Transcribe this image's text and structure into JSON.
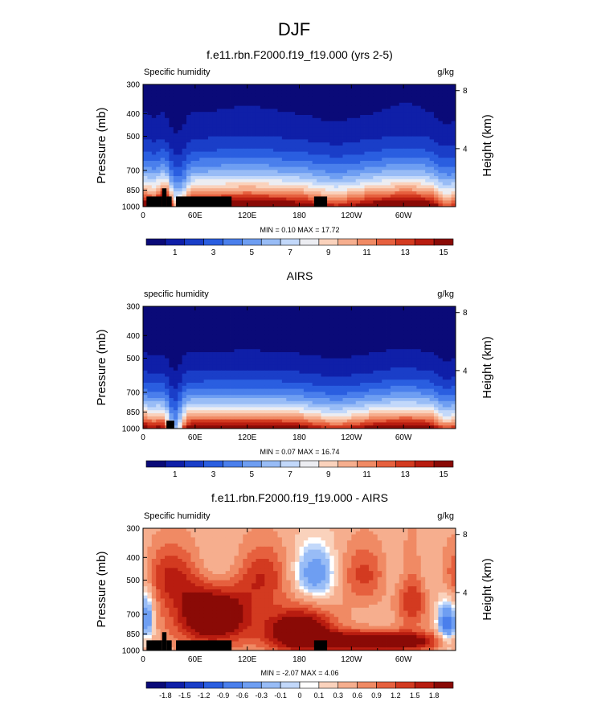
{
  "figure": {
    "title": "DJF"
  },
  "colors": {
    "humidity_scale": [
      "#0a0a78",
      "#0f1fa8",
      "#1a3ec8",
      "#2a5ee0",
      "#4a7fec",
      "#6e9ef2",
      "#98bcf6",
      "#c2d8fa",
      "#ecedf2",
      "#fad2bc",
      "#f6ae8e",
      "#f08a64",
      "#e6603e",
      "#d33a20",
      "#b81c10",
      "#8a0a06"
    ],
    "diff_scale": [
      "#0a0a78",
      "#0f1fa8",
      "#1a3ec8",
      "#2a5ee0",
      "#4a7fec",
      "#6e9ef2",
      "#98bcf6",
      "#c2d8fa",
      "#ffffff",
      "#fad2bc",
      "#f6ae8e",
      "#f08a64",
      "#e6603e",
      "#d33a20",
      "#b81c10",
      "#8a0a06"
    ],
    "land": "#000000"
  },
  "chart_data": [
    {
      "type": "heatmap",
      "title": "f.e11.rbn.F2000.f19_f19.000 (yrs 2-5)",
      "left_label": "Specific humidity",
      "units": "g/kg",
      "ylabel": "Pressure (mb)",
      "ylabel_right": "Height (km)",
      "x_ticks": [
        "0",
        "60E",
        "120E",
        "180",
        "120W",
        "60W"
      ],
      "x_tick_values": [
        0,
        60,
        120,
        180,
        240,
        300
      ],
      "xlim": [
        0,
        360
      ],
      "y_ticks": [
        "300",
        "400",
        "500",
        "700",
        "850",
        "1000"
      ],
      "y_tick_values": [
        300,
        400,
        500,
        700,
        850,
        1000
      ],
      "ylim": [
        300,
        1000
      ],
      "right_ticks": [
        "8",
        "4"
      ],
      "right_tick_values": [
        8,
        4
      ],
      "stats": "MIN =   0.10  MAX =  17.72",
      "colorbar_labels": [
        "1",
        "3",
        "5",
        "7",
        "9",
        "11",
        "13",
        "15"
      ],
      "levels": [
        0.5,
        1,
        1.5,
        2,
        2.5,
        3,
        3.5,
        4,
        4.5,
        5,
        5.5,
        6,
        6.5,
        7,
        7.5,
        8,
        8.5,
        9,
        9.5,
        10,
        10.5,
        11,
        11.5,
        12,
        12.5,
        13,
        13.5,
        14,
        14.5,
        15,
        15.5
      ],
      "field": "model",
      "land": [
        [
          4,
          22,
          905
        ],
        [
          22,
          27,
          835
        ],
        [
          27,
          33,
          905
        ],
        [
          38,
          102,
          905
        ],
        [
          197,
          212,
          905
        ]
      ]
    },
    {
      "type": "heatmap",
      "title": "AIRS",
      "left_label": "specific humidity",
      "units": "g/kg",
      "ylabel": "Pressure (mb)",
      "ylabel_right": "Height (km)",
      "x_ticks": [
        "0",
        "60E",
        "120E",
        "180",
        "120W",
        "60W"
      ],
      "x_tick_values": [
        0,
        60,
        120,
        180,
        240,
        300
      ],
      "xlim": [
        0,
        360
      ],
      "y_ticks": [
        "300",
        "400",
        "500",
        "700",
        "850",
        "1000"
      ],
      "y_tick_values": [
        300,
        400,
        500,
        700,
        850,
        1000
      ],
      "ylim": [
        300,
        1000
      ],
      "right_ticks": [
        "8",
        "4"
      ],
      "right_tick_values": [
        8,
        4
      ],
      "stats": "MIN =   0.07  MAX =  16.74",
      "colorbar_labels": [
        "1",
        "3",
        "5",
        "7",
        "9",
        "11",
        "13",
        "15"
      ],
      "levels": [
        0.5,
        1,
        1.5,
        2,
        2.5,
        3,
        3.5,
        4,
        4.5,
        5,
        5.5,
        6,
        6.5,
        7,
        7.5,
        8,
        8.5,
        9,
        9.5,
        10,
        10.5,
        11,
        11.5,
        12,
        12.5,
        13,
        13.5,
        14,
        14.5,
        15,
        15.5
      ],
      "field": "airs",
      "land": [
        [
          27,
          36,
          925
        ]
      ]
    },
    {
      "type": "heatmap",
      "title": "f.e11.rbn.F2000.f19_f19.000 - AIRS",
      "left_label": "Specific humidity",
      "units": "g/kg",
      "ylabel": "Pressure (mb)",
      "ylabel_right": "Height (km)",
      "x_ticks": [
        "0",
        "60E",
        "120E",
        "180",
        "120W",
        "60W"
      ],
      "x_tick_values": [
        0,
        60,
        120,
        180,
        240,
        300
      ],
      "xlim": [
        0,
        360
      ],
      "y_ticks": [
        "300",
        "400",
        "500",
        "700",
        "850",
        "1000"
      ],
      "y_tick_values": [
        300,
        400,
        500,
        700,
        850,
        1000
      ],
      "ylim": [
        300,
        1000
      ],
      "right_ticks": [
        "8",
        "4"
      ],
      "right_tick_values": [
        8,
        4
      ],
      "stats": "MIN =  -2.07  MAX =   4.06",
      "colorbar_labels": [
        "-1.8",
        "-1.5",
        "-1.2",
        "-0.9",
        "-0.6",
        "-0.3",
        "-0.1",
        "0",
        "0.1",
        "0.3",
        "0.6",
        "0.9",
        "1.2",
        "1.5",
        "1.8"
      ],
      "levels": [
        -1.8,
        -1.5,
        -1.2,
        -0.9,
        -0.6,
        -0.3,
        -0.1,
        0,
        0.1,
        0.3,
        0.6,
        0.9,
        1.2,
        1.5,
        1.8
      ],
      "field": "diff",
      "land": [
        [
          4,
          22,
          905
        ],
        [
          22,
          27,
          835
        ],
        [
          27,
          33,
          905
        ],
        [
          38,
          102,
          905
        ],
        [
          197,
          212,
          905
        ]
      ]
    }
  ]
}
